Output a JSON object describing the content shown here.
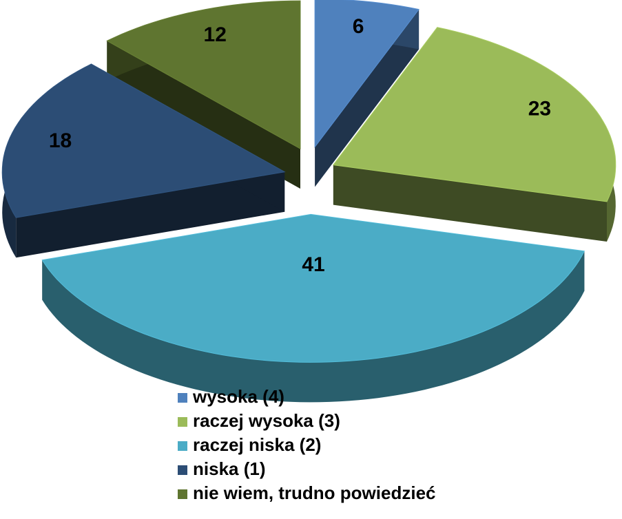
{
  "chart_data": {
    "type": "pie",
    "categories": [
      "wysoka (4)",
      "raczej wysoka (3)",
      "raczej niska (2)",
      "niska (1)",
      "nie wiem, trudno powiedzieć"
    ],
    "values": [
      6,
      23,
      41,
      18,
      12
    ],
    "colors": [
      "#4f81bd",
      "#9bbb59",
      "#4bacc6",
      "#2c4d75",
      "#5f7530"
    ],
    "legend": "bottom"
  }
}
